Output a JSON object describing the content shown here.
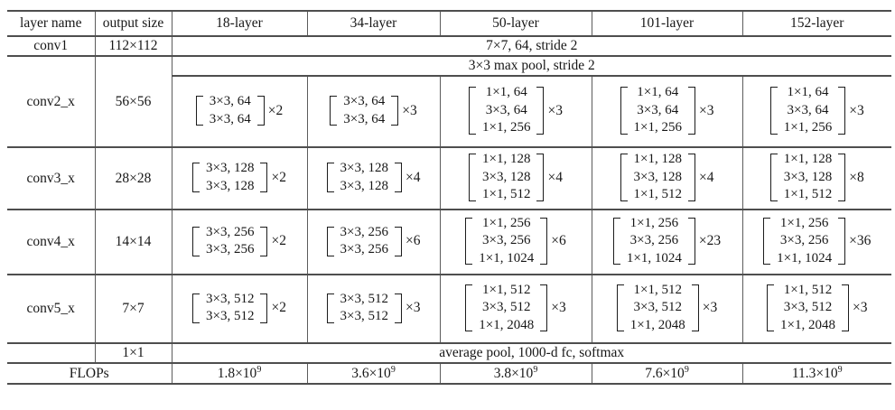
{
  "header": [
    "layer name",
    "output size",
    "18-layer",
    "34-layer",
    "50-layer",
    "101-layer",
    "152-layer"
  ],
  "conv1": {
    "name": "conv1",
    "size": "112×112",
    "spec": "7×7, 64, stride 2"
  },
  "maxpool_spec": "3×3 max pool, stride 2",
  "conv_rows": [
    {
      "name": "conv2_x",
      "size": "56×56",
      "blocks": [
        {
          "lines": [
            "3×3, 64",
            "3×3, 64"
          ],
          "mult": "×2"
        },
        {
          "lines": [
            "3×3, 64",
            "3×3, 64"
          ],
          "mult": "×3"
        },
        {
          "lines": [
            "1×1, 64",
            "3×3, 64",
            "1×1, 256"
          ],
          "mult": "×3"
        },
        {
          "lines": [
            "1×1, 64",
            "3×3, 64",
            "1×1, 256"
          ],
          "mult": "×3"
        },
        {
          "lines": [
            "1×1, 64",
            "3×3, 64",
            "1×1, 256"
          ],
          "mult": "×3"
        }
      ]
    },
    {
      "name": "conv3_x",
      "size": "28×28",
      "blocks": [
        {
          "lines": [
            "3×3, 128",
            "3×3, 128"
          ],
          "mult": "×2"
        },
        {
          "lines": [
            "3×3, 128",
            "3×3, 128"
          ],
          "mult": "×4"
        },
        {
          "lines": [
            "1×1, 128",
            "3×3, 128",
            "1×1, 512"
          ],
          "mult": "×4"
        },
        {
          "lines": [
            "1×1, 128",
            "3×3, 128",
            "1×1, 512"
          ],
          "mult": "×4"
        },
        {
          "lines": [
            "1×1, 128",
            "3×3, 128",
            "1×1, 512"
          ],
          "mult": "×8"
        }
      ]
    },
    {
      "name": "conv4_x",
      "size": "14×14",
      "blocks": [
        {
          "lines": [
            "3×3, 256",
            "3×3, 256"
          ],
          "mult": "×2"
        },
        {
          "lines": [
            "3×3, 256",
            "3×3, 256"
          ],
          "mult": "×6"
        },
        {
          "lines": [
            "1×1, 256",
            "3×3, 256",
            "1×1, 1024"
          ],
          "mult": "×6"
        },
        {
          "lines": [
            "1×1, 256",
            "3×3, 256",
            "1×1, 1024"
          ],
          "mult": "×23"
        },
        {
          "lines": [
            "1×1, 256",
            "3×3, 256",
            "1×1, 1024"
          ],
          "mult": "×36"
        }
      ]
    },
    {
      "name": "conv5_x",
      "size": "7×7",
      "blocks": [
        {
          "lines": [
            "3×3, 512",
            "3×3, 512"
          ],
          "mult": "×2"
        },
        {
          "lines": [
            "3×3, 512",
            "3×3, 512"
          ],
          "mult": "×3"
        },
        {
          "lines": [
            "1×1, 512",
            "3×3, 512",
            "1×1, 2048"
          ],
          "mult": "×3"
        },
        {
          "lines": [
            "1×1, 512",
            "3×3, 512",
            "1×1, 2048"
          ],
          "mult": "×3"
        },
        {
          "lines": [
            "1×1, 512",
            "3×3, 512",
            "1×1, 2048"
          ],
          "mult": "×3"
        }
      ]
    }
  ],
  "pool_row": {
    "size": "1×1",
    "spec": "average pool, 1000-d fc, softmax"
  },
  "flops": {
    "label": "FLOPs",
    "values": [
      {
        "base": "1.8×10",
        "exp": "9"
      },
      {
        "base": "3.6×10",
        "exp": "9"
      },
      {
        "base": "3.8×10",
        "exp": "9"
      },
      {
        "base": "7.6×10",
        "exp": "9"
      },
      {
        "base": "11.3×10",
        "exp": "9"
      }
    ]
  }
}
